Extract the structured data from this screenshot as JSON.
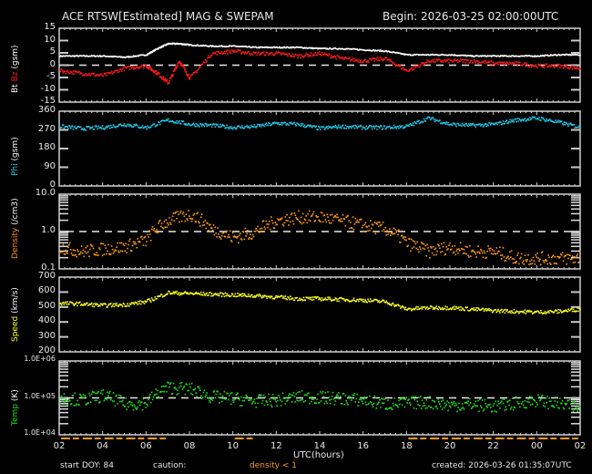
{
  "header": {
    "title": "ACE RTSW[Estimated] MAG & SWEPAM",
    "begin": "Begin: 2026-03-25 02:00:00UTC"
  },
  "footer": {
    "start_doy": "start DOY:  84",
    "caution": "caution:",
    "caution_note": "density < 1",
    "created": "created: 2026-03-26 01:35:07UTC",
    "xlabel": "UTC(hours)"
  },
  "colors": {
    "bt": "#ffffff",
    "bz": "#ff1a1a",
    "phi": "#22c8e8",
    "density": "#ff9a1a",
    "speed": "#ffff22",
    "temp": "#22dd22",
    "caution": "#ff9a1a",
    "frame": "#d0d0d0"
  },
  "x_ticks": [
    "02",
    "04",
    "06",
    "08",
    "10",
    "12",
    "14",
    "16",
    "18",
    "20",
    "22",
    "00",
    "02"
  ],
  "chart_data": [
    {
      "type": "scatter",
      "title": "Bt Bz (gsm)",
      "ylabel": "Bt Bz (gsm)",
      "ylim": [
        -15,
        15
      ],
      "yticks": [
        "15",
        "10",
        "5",
        "0",
        "-5",
        "-10",
        "-15"
      ],
      "reference_line": 0,
      "x": [
        2,
        3,
        4,
        5,
        6,
        6.5,
        7,
        7.5,
        8,
        9,
        10,
        11,
        12,
        13,
        14,
        15,
        16,
        17,
        18,
        19,
        20,
        21,
        22,
        23,
        24,
        25,
        26
      ],
      "series": [
        {
          "name": "Bt",
          "values": [
            4,
            4,
            4,
            3.5,
            4.5,
            7,
            9,
            9,
            8.5,
            8,
            8,
            7.5,
            7.5,
            7.5,
            7,
            7,
            6.5,
            6,
            4.5,
            4.5,
            4.5,
            4,
            4,
            4,
            4,
            4.5,
            4.5
          ]
        },
        {
          "name": "Bz",
          "values": [
            -2,
            -3,
            -4,
            -1,
            0,
            -3,
            -7,
            2,
            -5,
            5,
            6,
            5,
            5,
            4,
            5,
            3,
            2,
            3,
            -2,
            2,
            2,
            2,
            1,
            1,
            0,
            0,
            -1
          ]
        }
      ]
    },
    {
      "type": "scatter",
      "title": "Phi (gsm)",
      "ylabel": "Phi (gsm)",
      "ylim": [
        0,
        360
      ],
      "yticks": [
        "360",
        "270",
        "180",
        "90",
        "0"
      ],
      "x": [
        2,
        3,
        4,
        5,
        6,
        7,
        8,
        9,
        10,
        11,
        12,
        13,
        14,
        15,
        16,
        17,
        18,
        19,
        20,
        21,
        22,
        23,
        24,
        25,
        26
      ],
      "series": [
        {
          "name": "Phi",
          "values": [
            290,
            280,
            285,
            300,
            285,
            320,
            300,
            295,
            285,
            290,
            305,
            300,
            280,
            290,
            285,
            285,
            290,
            330,
            300,
            295,
            300,
            320,
            330,
            310,
            285
          ]
        }
      ]
    },
    {
      "type": "scatter",
      "title": "Density (/cm3)",
      "ylabel": "Density (/cm3)",
      "ylim": [
        0.1,
        10.0
      ],
      "yscale": "log",
      "yticks": [
        "10.0",
        "1.0",
        "0.1"
      ],
      "reference_line": 1.0,
      "x": [
        2,
        3,
        4,
        5,
        6,
        7,
        8,
        9,
        10,
        11,
        12,
        13,
        14,
        15,
        16,
        17,
        18,
        19,
        20,
        21,
        22,
        23,
        24,
        25,
        26
      ],
      "series": [
        {
          "name": "Density",
          "values": [
            0.4,
            0.3,
            0.35,
            0.4,
            0.6,
            2.0,
            3.0,
            1.2,
            0.7,
            1.0,
            2.0,
            2.5,
            2.5,
            2.0,
            1.5,
            1.2,
            0.5,
            0.3,
            0.4,
            0.3,
            0.3,
            0.2,
            0.2,
            0.2,
            0.2
          ]
        }
      ]
    },
    {
      "type": "scatter",
      "title": "Speed (km/s)",
      "ylabel": "Speed (km/s)",
      "ylim": [
        200,
        700
      ],
      "yticks": [
        "700",
        "600",
        "500",
        "400",
        "300",
        "200"
      ],
      "x": [
        2,
        3,
        4,
        5,
        6,
        7,
        8,
        9,
        10,
        11,
        12,
        13,
        14,
        15,
        16,
        17,
        18,
        19,
        20,
        21,
        22,
        23,
        24,
        25,
        26
      ],
      "series": [
        {
          "name": "Speed",
          "values": [
            530,
            525,
            515,
            520,
            540,
            600,
            595,
            590,
            585,
            580,
            570,
            560,
            560,
            555,
            550,
            540,
            490,
            500,
            500,
            490,
            480,
            475,
            470,
            475,
            490
          ]
        }
      ]
    },
    {
      "type": "scatter",
      "title": "Temp (K)",
      "ylabel": "Temp (K)",
      "ylim": [
        10000,
        1000000
      ],
      "yscale": "log",
      "yticks": [
        "1.0E+06",
        "1.0E+05",
        "1.0E+04"
      ],
      "reference_line": 100000,
      "x": [
        2,
        3,
        4,
        5,
        6,
        7,
        8,
        9,
        10,
        11,
        12,
        13,
        14,
        15,
        16,
        17,
        18,
        19,
        20,
        21,
        22,
        23,
        24,
        25,
        26
      ],
      "series": [
        {
          "name": "Temp",
          "values": [
            110000,
            90000,
            120000,
            70000,
            75000,
            200000,
            180000,
            110000,
            100000,
            85000,
            90000,
            110000,
            105000,
            100000,
            90000,
            70000,
            75000,
            80000,
            65000,
            70000,
            60000,
            75000,
            90000,
            70000,
            55000
          ]
        }
      ]
    }
  ]
}
